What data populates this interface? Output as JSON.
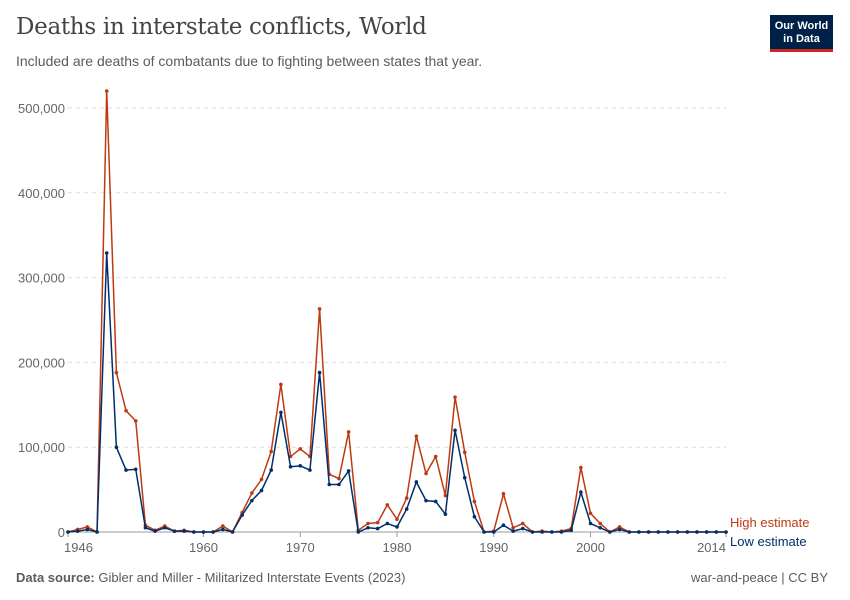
{
  "title": "Deaths in interstate conflicts, World",
  "subtitle": "Included are deaths of combatants due to fighting between states that year.",
  "logo": {
    "line1": "Our World",
    "line2": "in Data"
  },
  "footer": {
    "source_label": "Data source:",
    "source": "Gibler and Miller - Militarized Interstate Events (2023)",
    "license": "war-and-peace | CC BY"
  },
  "chart_data": {
    "type": "line",
    "title": "Deaths in interstate conflicts, World",
    "xlim": [
      1946,
      2014
    ],
    "ylim": [
      0,
      500000
    ],
    "y_ticks": [
      0,
      100000,
      200000,
      300000,
      400000,
      500000
    ],
    "y_tick_labels": [
      "0",
      "100,000",
      "200,000",
      "300,000",
      "400,000",
      "500,000"
    ],
    "x_ticks": [
      1946,
      1960,
      1970,
      1980,
      1990,
      2000,
      2014
    ],
    "x_tick_labels": [
      "1946",
      "1960",
      "1970",
      "1980",
      "1990",
      "2000",
      "2014"
    ],
    "grid": "horizontal dashed",
    "legend": "right end labels",
    "x": [
      1946,
      1947,
      1948,
      1949,
      1950,
      1951,
      1952,
      1953,
      1954,
      1955,
      1956,
      1957,
      1958,
      1959,
      1960,
      1961,
      1962,
      1963,
      1964,
      1965,
      1966,
      1967,
      1968,
      1969,
      1970,
      1971,
      1972,
      1973,
      1974,
      1975,
      1976,
      1977,
      1978,
      1979,
      1980,
      1981,
      1982,
      1983,
      1984,
      1985,
      1986,
      1987,
      1988,
      1989,
      1990,
      1991,
      1992,
      1993,
      1994,
      1995,
      1996,
      1997,
      1998,
      1999,
      2000,
      2001,
      2002,
      2003,
      2004,
      2005,
      2006,
      2007,
      2008,
      2009,
      2010,
      2011,
      2012,
      2013,
      2014
    ],
    "series": [
      {
        "name": "High estimate",
        "color": "#be3a10",
        "values": [
          0,
          3000,
          6000,
          0,
          520000,
          188000,
          143000,
          131000,
          8000,
          2000,
          7000,
          1000,
          2000,
          0,
          0,
          0,
          7000,
          0,
          23000,
          46000,
          62000,
          95000,
          174000,
          89000,
          98000,
          89000,
          263000,
          68000,
          63000,
          118000,
          2000,
          10000,
          11000,
          32000,
          15000,
          40000,
          113000,
          69000,
          89000,
          43000,
          159000,
          94000,
          36000,
          0,
          1000,
          45000,
          5000,
          10000,
          0,
          1000,
          0,
          1000,
          4000,
          76000,
          22000,
          10000,
          0,
          6000,
          0,
          0,
          0,
          0,
          0,
          0,
          0,
          0,
          0,
          0,
          0
        ]
      },
      {
        "name": "Low estimate",
        "color": "#002f6c",
        "values": [
          0,
          1000,
          3000,
          0,
          329000,
          100000,
          73000,
          74000,
          5000,
          1000,
          5000,
          1000,
          1000,
          0,
          0,
          0,
          3000,
          0,
          20000,
          37000,
          49000,
          73000,
          141000,
          77000,
          78000,
          73000,
          188000,
          56000,
          56000,
          72000,
          0,
          5000,
          4000,
          10000,
          6000,
          27000,
          59000,
          37000,
          36000,
          21000,
          120000,
          64000,
          18000,
          0,
          0,
          8000,
          1000,
          4000,
          0,
          0,
          0,
          0,
          2000,
          47000,
          10000,
          5000,
          0,
          3000,
          0,
          0,
          0,
          0,
          0,
          0,
          0,
          0,
          0,
          0,
          0
        ]
      }
    ]
  }
}
